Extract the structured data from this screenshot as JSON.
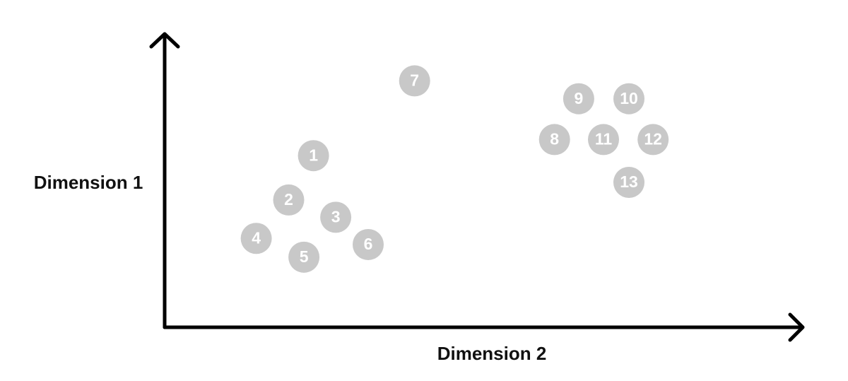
{
  "chart_data": {
    "type": "scatter",
    "xlabel": "Dimension 2",
    "ylabel": "Dimension 1",
    "xlim": [
      0,
      100
    ],
    "ylim": [
      0,
      100
    ],
    "grid": false,
    "point_color": "#c8c8c8",
    "label_color": "#ffffff",
    "axis_color": "#000000",
    "points": [
      {
        "label": "1",
        "x": 23.4,
        "y": 58.5
      },
      {
        "label": "2",
        "x": 19.5,
        "y": 43.4
      },
      {
        "label": "3",
        "x": 26.9,
        "y": 37.5
      },
      {
        "label": "4",
        "x": 14.4,
        "y": 30.3
      },
      {
        "label": "5",
        "x": 21.9,
        "y": 23.9
      },
      {
        "label": "6",
        "x": 32.0,
        "y": 28.2
      },
      {
        "label": "7",
        "x": 39.3,
        "y": 84.0
      },
      {
        "label": "8",
        "x": 61.3,
        "y": 64.0
      },
      {
        "label": "9",
        "x": 65.1,
        "y": 77.9
      },
      {
        "label": "10",
        "x": 73.0,
        "y": 77.9
      },
      {
        "label": "11",
        "x": 69.0,
        "y": 64.0
      },
      {
        "label": "12",
        "x": 76.8,
        "y": 64.0
      },
      {
        "label": "13",
        "x": 73.0,
        "y": 49.4
      }
    ]
  }
}
